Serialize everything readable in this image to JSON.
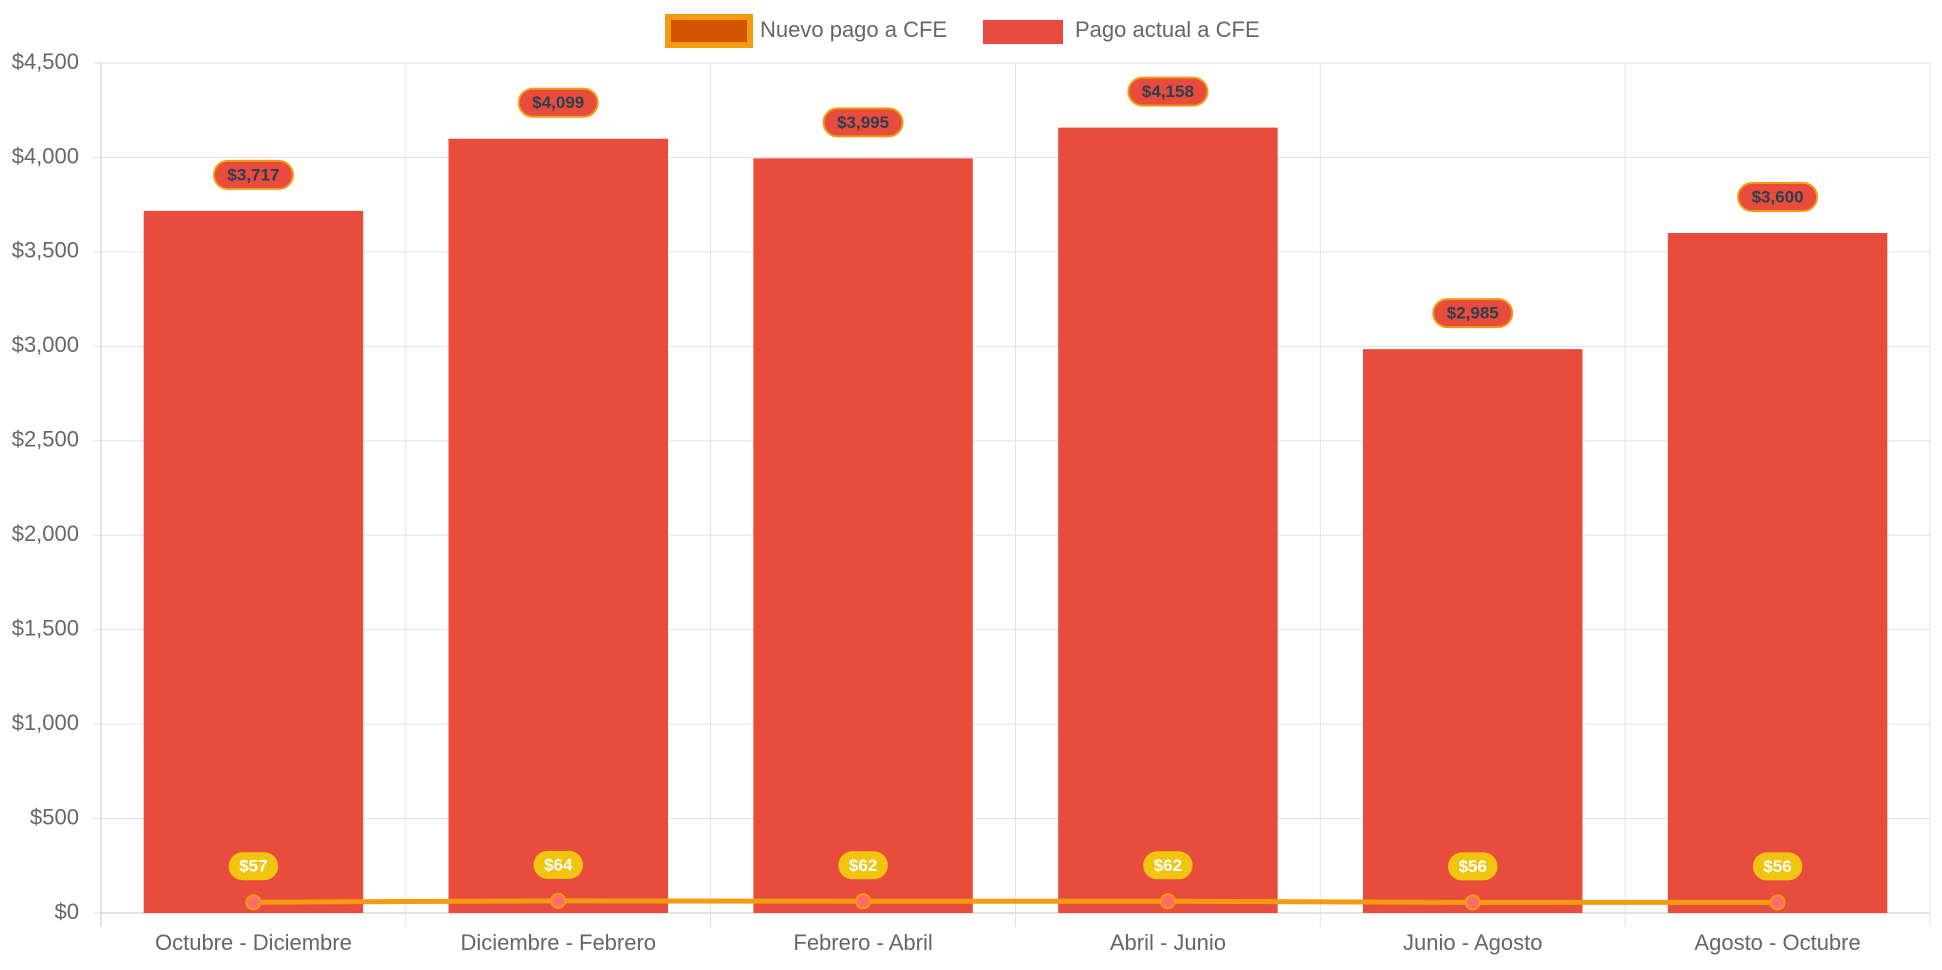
{
  "chart_data": {
    "type": "bar",
    "categories": [
      "Octubre - Diciembre",
      "Diciembre - Febrero",
      "Febrero - Abril",
      "Abril - Junio",
      "Junio - Agosto",
      "Agosto - Octubre"
    ],
    "series": [
      {
        "name": "Nuevo pago a CFE",
        "type": "line",
        "values": [
          57,
          64,
          62,
          62,
          56,
          56
        ],
        "labels": [
          "$57",
          "$64",
          "$62",
          "$62",
          "$56",
          "$56"
        ],
        "color": "#f39c12",
        "legend_fill": "#d35400",
        "point_color": "#ff6b6b",
        "label_bg": "#f1c40f"
      },
      {
        "name": "Pago actual a CFE",
        "type": "bar",
        "values": [
          3717,
          4099,
          3995,
          4158,
          2985,
          3600
        ],
        "labels": [
          "$3,717",
          "$4,099",
          "$3,995",
          "$4,158",
          "$2,985",
          "$3,600"
        ],
        "color": "#e74c3c",
        "label_border": "#f39c12"
      }
    ],
    "ylim": [
      0,
      4500
    ],
    "yticks": [
      0,
      500,
      1000,
      1500,
      2000,
      2500,
      3000,
      3500,
      4000,
      4500
    ],
    "ytick_labels": [
      "$0",
      "$500",
      "$1,000",
      "$1,500",
      "$2,000",
      "$2,500",
      "$3,000",
      "$3,500",
      "$4,000",
      "$4,500"
    ],
    "grid": true,
    "legend_position": "top-center",
    "title": "",
    "xlabel": "",
    "ylabel": ""
  }
}
